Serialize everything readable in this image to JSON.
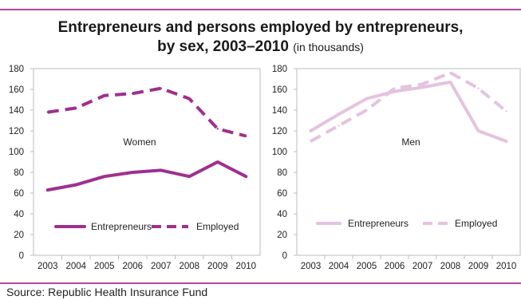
{
  "title": {
    "main_line1": "Entrepreneurs and persons employed by entrepreneurs,",
    "main_line2": "by sex, 2003–2010",
    "unit_note": "(in thousands)"
  },
  "source": "Source: Republic Health Insurance Fund",
  "colors": {
    "women": "#a02f8f",
    "men": "#e4c3df",
    "rule": "#b5489f",
    "frame": "#bdbdbd",
    "grid": "#d9d9d9"
  },
  "chart_data": [
    {
      "type": "line",
      "panel": "Women",
      "x": [
        "2003",
        "2004",
        "2005",
        "2006",
        "2007",
        "2008",
        "2009",
        "2010"
      ],
      "ylim": [
        0,
        180
      ],
      "yticks": [
        "0",
        "20",
        "40",
        "60",
        "80",
        "100",
        "120",
        "140",
        "160",
        "180"
      ],
      "grid": false,
      "legend": "bottom",
      "series": [
        {
          "name": "Entrepreneurs",
          "style": "solid",
          "values": [
            63,
            68,
            76,
            80,
            82,
            76,
            90,
            76
          ]
        },
        {
          "name": "Employed",
          "style": "dashed",
          "values": [
            138,
            142,
            154,
            156,
            161,
            151,
            122,
            115
          ]
        }
      ]
    },
    {
      "type": "line",
      "panel": "Men",
      "x": [
        "2003",
        "2004",
        "2005",
        "2006",
        "2007",
        "2008",
        "2009",
        "2010"
      ],
      "ylim": [
        0,
        180
      ],
      "yticks": [
        "0",
        "20",
        "40",
        "60",
        "80",
        "100",
        "120",
        "140",
        "160",
        "180"
      ],
      "grid": false,
      "legend": "bottom",
      "series": [
        {
          "name": "Entrepreneurs",
          "style": "solid",
          "values": [
            120,
            136,
            151,
            158,
            162,
            167,
            120,
            110
          ]
        },
        {
          "name": "Employed",
          "style": "dashed",
          "values": [
            110,
            125,
            140,
            161,
            165,
            176,
            161,
            139
          ]
        }
      ]
    }
  ]
}
